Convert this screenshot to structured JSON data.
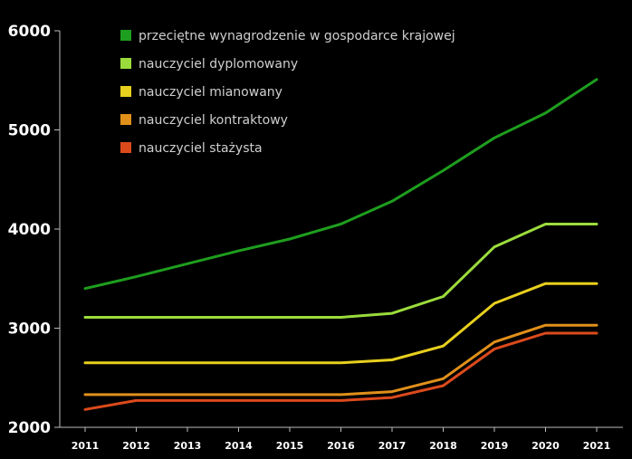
{
  "chart_data": {
    "type": "line",
    "title": "",
    "xlabel": "",
    "ylabel": "",
    "x": [
      "2011",
      "2012",
      "2013",
      "2014",
      "2015",
      "2016",
      "2017",
      "2018",
      "2019",
      "2020",
      "2021"
    ],
    "yticks": [
      "2000",
      "3000",
      "4000",
      "5000",
      "6000"
    ],
    "ylim": [
      2000,
      6000
    ],
    "grid": false,
    "legend_position": "top-left",
    "series": [
      {
        "name": "przeciętne wynagrodzenie w gospodarce krajowej",
        "color": "#1e9e1e",
        "values": [
          3400,
          3520,
          3650,
          3780,
          3900,
          4050,
          4280,
          4590,
          4920,
          5170,
          5510
        ]
      },
      {
        "name": "nauczyciel dyplomowany",
        "color": "#9bdc3c",
        "values": [
          3110,
          3110,
          3110,
          3110,
          3110,
          3110,
          3150,
          3320,
          3820,
          4050,
          4050
        ]
      },
      {
        "name": "nauczyciel mianowany",
        "color": "#e8d01e",
        "values": [
          2650,
          2650,
          2650,
          2650,
          2650,
          2650,
          2680,
          2820,
          3250,
          3450,
          3450
        ]
      },
      {
        "name": "nauczyciel kontraktowy",
        "color": "#e0901a",
        "values": [
          2330,
          2330,
          2330,
          2330,
          2330,
          2330,
          2360,
          2490,
          2860,
          3030,
          3030
        ]
      },
      {
        "name": "nauczyciel stażysta",
        "color": "#dc4a1c",
        "values": [
          2180,
          2270,
          2270,
          2270,
          2270,
          2270,
          2300,
          2420,
          2790,
          2950,
          2950
        ]
      }
    ]
  }
}
